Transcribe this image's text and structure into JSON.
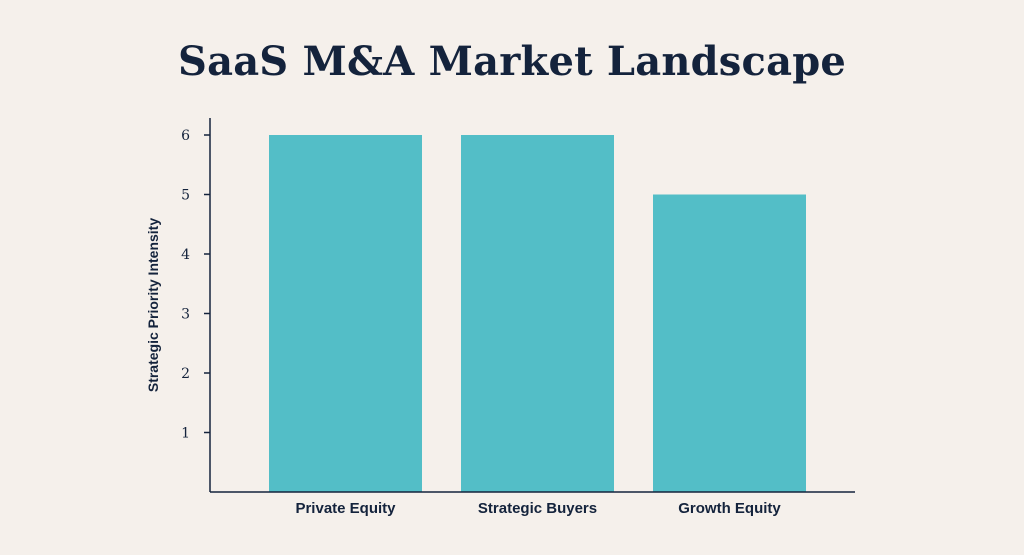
{
  "title": "SaaS M&A Market Landscape",
  "colors": {
    "bar": "#53bec7",
    "axis": "#14233c",
    "background": "#f5f0eb"
  },
  "chart_data": {
    "type": "bar",
    "title": "SaaS M&A Market Landscape",
    "categories": [
      "Private Equity",
      "Strategic Buyers",
      "Growth Equity"
    ],
    "values": [
      6,
      6,
      5
    ],
    "xlabel": "",
    "ylabel": "Strategic Priority Intensity",
    "yticks": [
      1,
      2,
      3,
      4,
      5,
      6
    ],
    "ylim": [
      0,
      6
    ],
    "grid": false,
    "legend": "none"
  }
}
